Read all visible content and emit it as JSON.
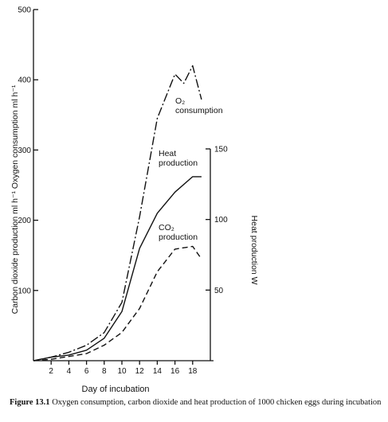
{
  "caption": {
    "label": "Figure 13.1",
    "text": "Oxygen consumption, carbon dioxide and heat production of 1000 chicken eggs during incubation"
  },
  "chart_data": {
    "type": "line",
    "xlabel": "Day of incubation",
    "ylabel_left": "Carbon dioxide production ml h⁻¹ Oxygen consumption ml h⁻¹",
    "ylabel_right": "Heat production W",
    "xlim": [
      0,
      20
    ],
    "ylim_left": [
      0,
      500
    ],
    "ylim_right": [
      0,
      150
    ],
    "x_ticks": [
      2,
      4,
      6,
      8,
      10,
      12,
      14,
      16,
      18
    ],
    "y_left_ticks": [
      100,
      200,
      300,
      400,
      500
    ],
    "y_right_ticks": [
      50,
      100,
      150
    ],
    "grid": false,
    "series": [
      {
        "name": "O₂ consumption",
        "label_lines": [
          "O₂",
          "consumption"
        ],
        "axis": "left",
        "style": "dash-dot",
        "x": [
          0,
          2,
          4,
          6,
          8,
          10,
          12,
          14,
          16,
          17,
          18,
          19
        ],
        "y": [
          0,
          5,
          12,
          22,
          40,
          83,
          205,
          345,
          408,
          395,
          420,
          372
        ]
      },
      {
        "name": "Heat production",
        "label_lines": [
          "Heat",
          "production"
        ],
        "axis": "right",
        "style": "dashed",
        "x": [
          0,
          2,
          4,
          6,
          8,
          10,
          12,
          14,
          16,
          18,
          19
        ],
        "y": [
          0,
          1,
          3,
          5,
          11,
          20,
          37,
          63,
          79,
          81,
          72
        ]
      },
      {
        "name": "CO₂ production",
        "label_lines": [
          "CO₂",
          "production"
        ],
        "axis": "left",
        "style": "solid",
        "x": [
          0,
          2,
          4,
          6,
          8,
          10,
          12,
          14,
          16,
          18,
          19
        ],
        "y": [
          0,
          5,
          8,
          15,
          32,
          70,
          160,
          210,
          240,
          262,
          262
        ]
      }
    ]
  }
}
